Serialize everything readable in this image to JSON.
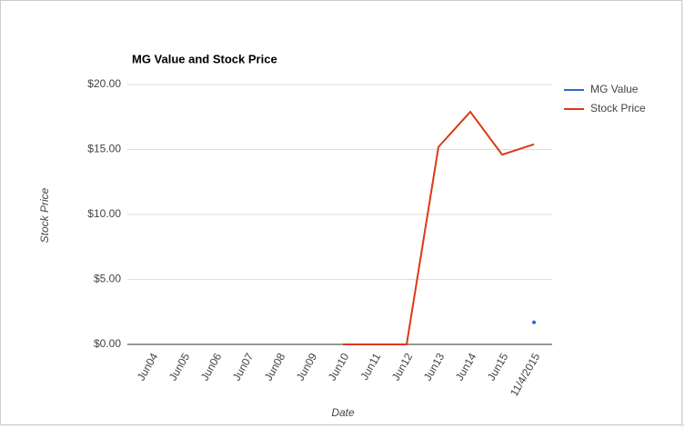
{
  "chart_data": {
    "type": "line",
    "title": "MG Value and Stock Price",
    "x_label": "Date",
    "y_label": "Stock Price",
    "categories": [
      "Jun04",
      "Jun05",
      "Jun06",
      "Jun07",
      "Jun08",
      "Jun09",
      "Jun10",
      "Jun11",
      "Jun12",
      "Jun13",
      "Jun14",
      "Jun15",
      "11/4/2015"
    ],
    "series": [
      {
        "name": "MG Value",
        "color": "#3366cc",
        "values": [
          null,
          null,
          null,
          null,
          null,
          null,
          null,
          null,
          null,
          null,
          null,
          null,
          1.7
        ]
      },
      {
        "name": "Stock Price",
        "color": "#dc3912",
        "values": [
          null,
          null,
          null,
          null,
          null,
          null,
          0,
          0,
          0,
          15.2,
          17.9,
          14.6,
          15.4
        ]
      }
    ],
    "ylim": [
      0,
      20
    ],
    "yticks": [
      {
        "value": 0,
        "label": "$0.00"
      },
      {
        "value": 5,
        "label": "$5.00"
      },
      {
        "value": 10,
        "label": "$10.00"
      },
      {
        "value": 15,
        "label": "$15.00"
      },
      {
        "value": 20,
        "label": "$20.00"
      }
    ],
    "grid": true,
    "legend": "right"
  }
}
